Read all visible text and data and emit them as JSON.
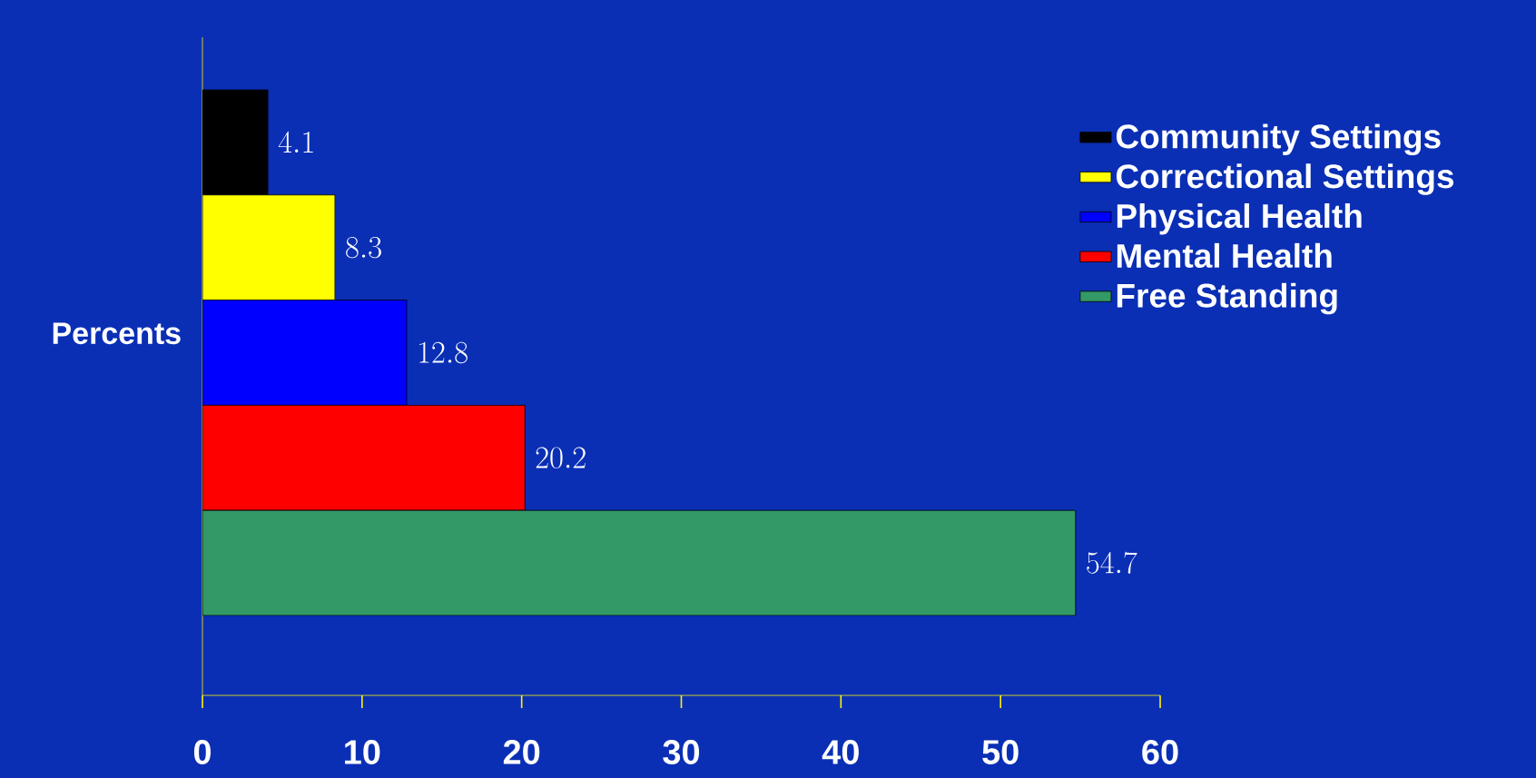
{
  "chart_data": {
    "type": "bar",
    "orientation": "horizontal",
    "ylabel": "Percents",
    "categories": [
      null,
      null,
      null,
      null,
      null
    ],
    "series": [
      {
        "name": "Community Settings",
        "color": "#000000",
        "values": [
          4.1,
          null,
          null,
          null,
          null
        ]
      },
      {
        "name": "Correctional Settings",
        "color": "#ffff00",
        "values": [
          null,
          8.3,
          null,
          null,
          null
        ]
      },
      {
        "name": "Physical Health",
        "color": "#0000ff",
        "values": [
          null,
          null,
          12.8,
          null,
          null
        ]
      },
      {
        "name": "Mental Health",
        "color": "#ff0000",
        "values": [
          null,
          null,
          null,
          20.2,
          null
        ]
      },
      {
        "name": "Free Standing",
        "color": "#339966",
        "values": [
          null,
          null,
          null,
          null,
          54.7
        ]
      }
    ],
    "xlim": [
      0,
      60
    ],
    "xticks": [
      0,
      10,
      20,
      30,
      40,
      50,
      60
    ],
    "data_labels": true,
    "legend": "right",
    "grid": false
  }
}
